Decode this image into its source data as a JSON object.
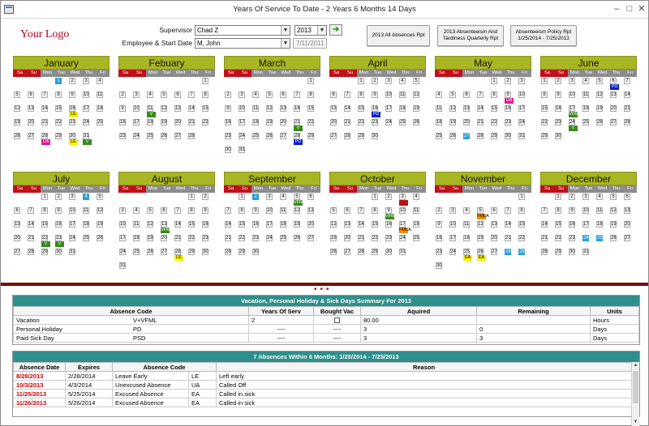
{
  "window": {
    "title": "Years Of Service To Date - 2 Years 6 Months 14 Days"
  },
  "logo": "Your Logo",
  "supervisor": {
    "label": "Supervisor",
    "value": "Chad Z"
  },
  "year": {
    "value": "2013"
  },
  "employee": {
    "label": "Employee & Start Date",
    "value": "M, John",
    "start_date": "7/11/2011"
  },
  "reports": [
    {
      "label": "2013 All Absences Rpt"
    },
    {
      "label": "2013 Absenteeism And Tardiness Quarterly Rpt"
    },
    {
      "label": "Absenteeism Policy Rpt 1/25/2014 - 7/25/2013"
    }
  ],
  "dow": [
    "Sa",
    "Su",
    "Mon",
    "Tue",
    "Wed",
    "Thu",
    "Fri"
  ],
  "months": [
    {
      "name": "January",
      "offset": 3,
      "days": 31,
      "marks": {
        "1": {
          "c": "#2a9fd6",
          "today": true
        },
        "16": {
          "code": "LE",
          "c": "#f5f000",
          "tc": "#000"
        },
        "28": {
          "code": "UA",
          "c": "#e0179a"
        },
        "30": {
          "code": "LE",
          "c": "#f5f000",
          "tc": "#000"
        },
        "31": {
          "code": "V",
          "c": "#3a8a1e"
        }
      }
    },
    {
      "name": "Febuary",
      "offset": 6,
      "days": 28,
      "marks": {
        "11": {
          "code": "V",
          "c": "#3a8a1e"
        }
      }
    },
    {
      "name": "March",
      "offset": 6,
      "days": 31,
      "marks": {
        "21": {
          "code": "V",
          "c": "#3a8a1e"
        },
        "28": {
          "code": "PD",
          "c": "#0a1fcc"
        }
      }
    },
    {
      "name": "April",
      "offset": 2,
      "days": 30,
      "marks": {
        "16": {
          "code": "PD",
          "c": "#0a1fcc"
        }
      }
    },
    {
      "name": "May",
      "offset": 4,
      "days": 31,
      "marks": {
        "9": {
          "code": "UA",
          "c": "#e0179a"
        },
        "27": {
          "c": "#2a9fd6",
          "today": true
        }
      }
    },
    {
      "name": "June",
      "offset": 0,
      "days": 30,
      "marks": {
        "6": {
          "code": "PD",
          "c": "#0a1fcc"
        },
        "17": {
          "code": "VFML",
          "c": "#3a8a1e"
        },
        "24": {
          "code": "V",
          "c": "#3a8a1e"
        }
      }
    },
    {
      "name": "July",
      "offset": 2,
      "days": 31,
      "marks": {
        "4": {
          "c": "#2a9fd6",
          "today": true
        },
        "22": {
          "code": "V",
          "c": "#3a8a1e"
        },
        "23": {
          "code": "V",
          "c": "#3a8a1e"
        }
      }
    },
    {
      "name": "August",
      "offset": 5,
      "days": 31,
      "marks": {
        "13": {
          "code": "VFML",
          "c": "#3a8a1e"
        },
        "28": {
          "code": "LE",
          "c": "#f5f000",
          "tc": "#000"
        }
      }
    },
    {
      "name": "September",
      "offset": 1,
      "days": 30,
      "marks": {
        "2": {
          "c": "#2a9fd6",
          "today": true
        },
        "5": {
          "code": "VFML",
          "c": "#3a8a1e"
        }
      }
    },
    {
      "name": "October",
      "offset": 3,
      "days": 31,
      "marks": {
        "3": {
          "code": "",
          "c": "#c0101a"
        },
        "9": {
          "code": "VFML",
          "c": "#3a8a1e"
        },
        "17": {
          "code": "FMLA",
          "c": "#f28c00",
          "tc": "#000"
        }
      }
    },
    {
      "name": "November",
      "offset": 6,
      "days": 30,
      "marks": {
        "5": {
          "code": "FMLA",
          "c": "#f28c00",
          "tc": "#000"
        },
        "25": {
          "code": "EA",
          "c": "#f5f000",
          "tc": "#000"
        },
        "26": {
          "code": "EA",
          "c": "#f5f000",
          "tc": "#000"
        },
        "28": {
          "c": "#2a9fd6",
          "today": true
        },
        "29": {
          "c": "#2a9fd6",
          "today": true
        }
      }
    },
    {
      "name": "December",
      "offset": 1,
      "days": 31,
      "marks": {
        "24": {
          "c": "#2a9fd6",
          "today": true
        },
        "25": {
          "c": "#2a9fd6",
          "today": true
        }
      }
    }
  ],
  "summary": {
    "title": "Vacation, Personal Holiday & Sick Days Summary For 2013",
    "headers": [
      "Absence Code",
      "Years Of Serv",
      "Bought Vac",
      "Aquired",
      "Remaining",
      "Units"
    ],
    "rows": [
      {
        "name": "Vacation",
        "code": "V+VFML",
        "years": "2",
        "bought": "checkbox",
        "aquired": "80.00",
        "remaining": "",
        "units": "Hours"
      },
      {
        "name": "Personal Holiday",
        "code": "PD",
        "years": "----",
        "bought": "----",
        "aquired": "3",
        "remaining": "0",
        "units": "Days"
      },
      {
        "name": "Paid Sick Day",
        "code": "PSD",
        "years": "----",
        "bought": "----",
        "aquired": "3",
        "remaining": "3",
        "units": "Days"
      }
    ]
  },
  "absences": {
    "title": "7 Absences Within 6 Months: 1/25/2014 - 7/25/2013",
    "headers": [
      "Absence Date",
      "Expires",
      "Absence Code",
      "Reason"
    ],
    "rows": [
      {
        "date": "8/28/2013",
        "expires": "2/28/2014",
        "desc": "Leave Early",
        "code": "LE",
        "reason": "Left early"
      },
      {
        "date": "10/3/2013",
        "expires": "4/3/2014",
        "desc": "Unexcused Absence",
        "code": "UA",
        "reason": "Called Off"
      },
      {
        "date": "11/25/2013",
        "expires": "5/25/2014",
        "desc": "Excused Absence",
        "code": "EA",
        "reason": "Called in sick"
      },
      {
        "date": "11/26/2013",
        "expires": "5/26/2014",
        "desc": "Excused Absence",
        "code": "EA",
        "reason": "Called in sick"
      }
    ]
  }
}
